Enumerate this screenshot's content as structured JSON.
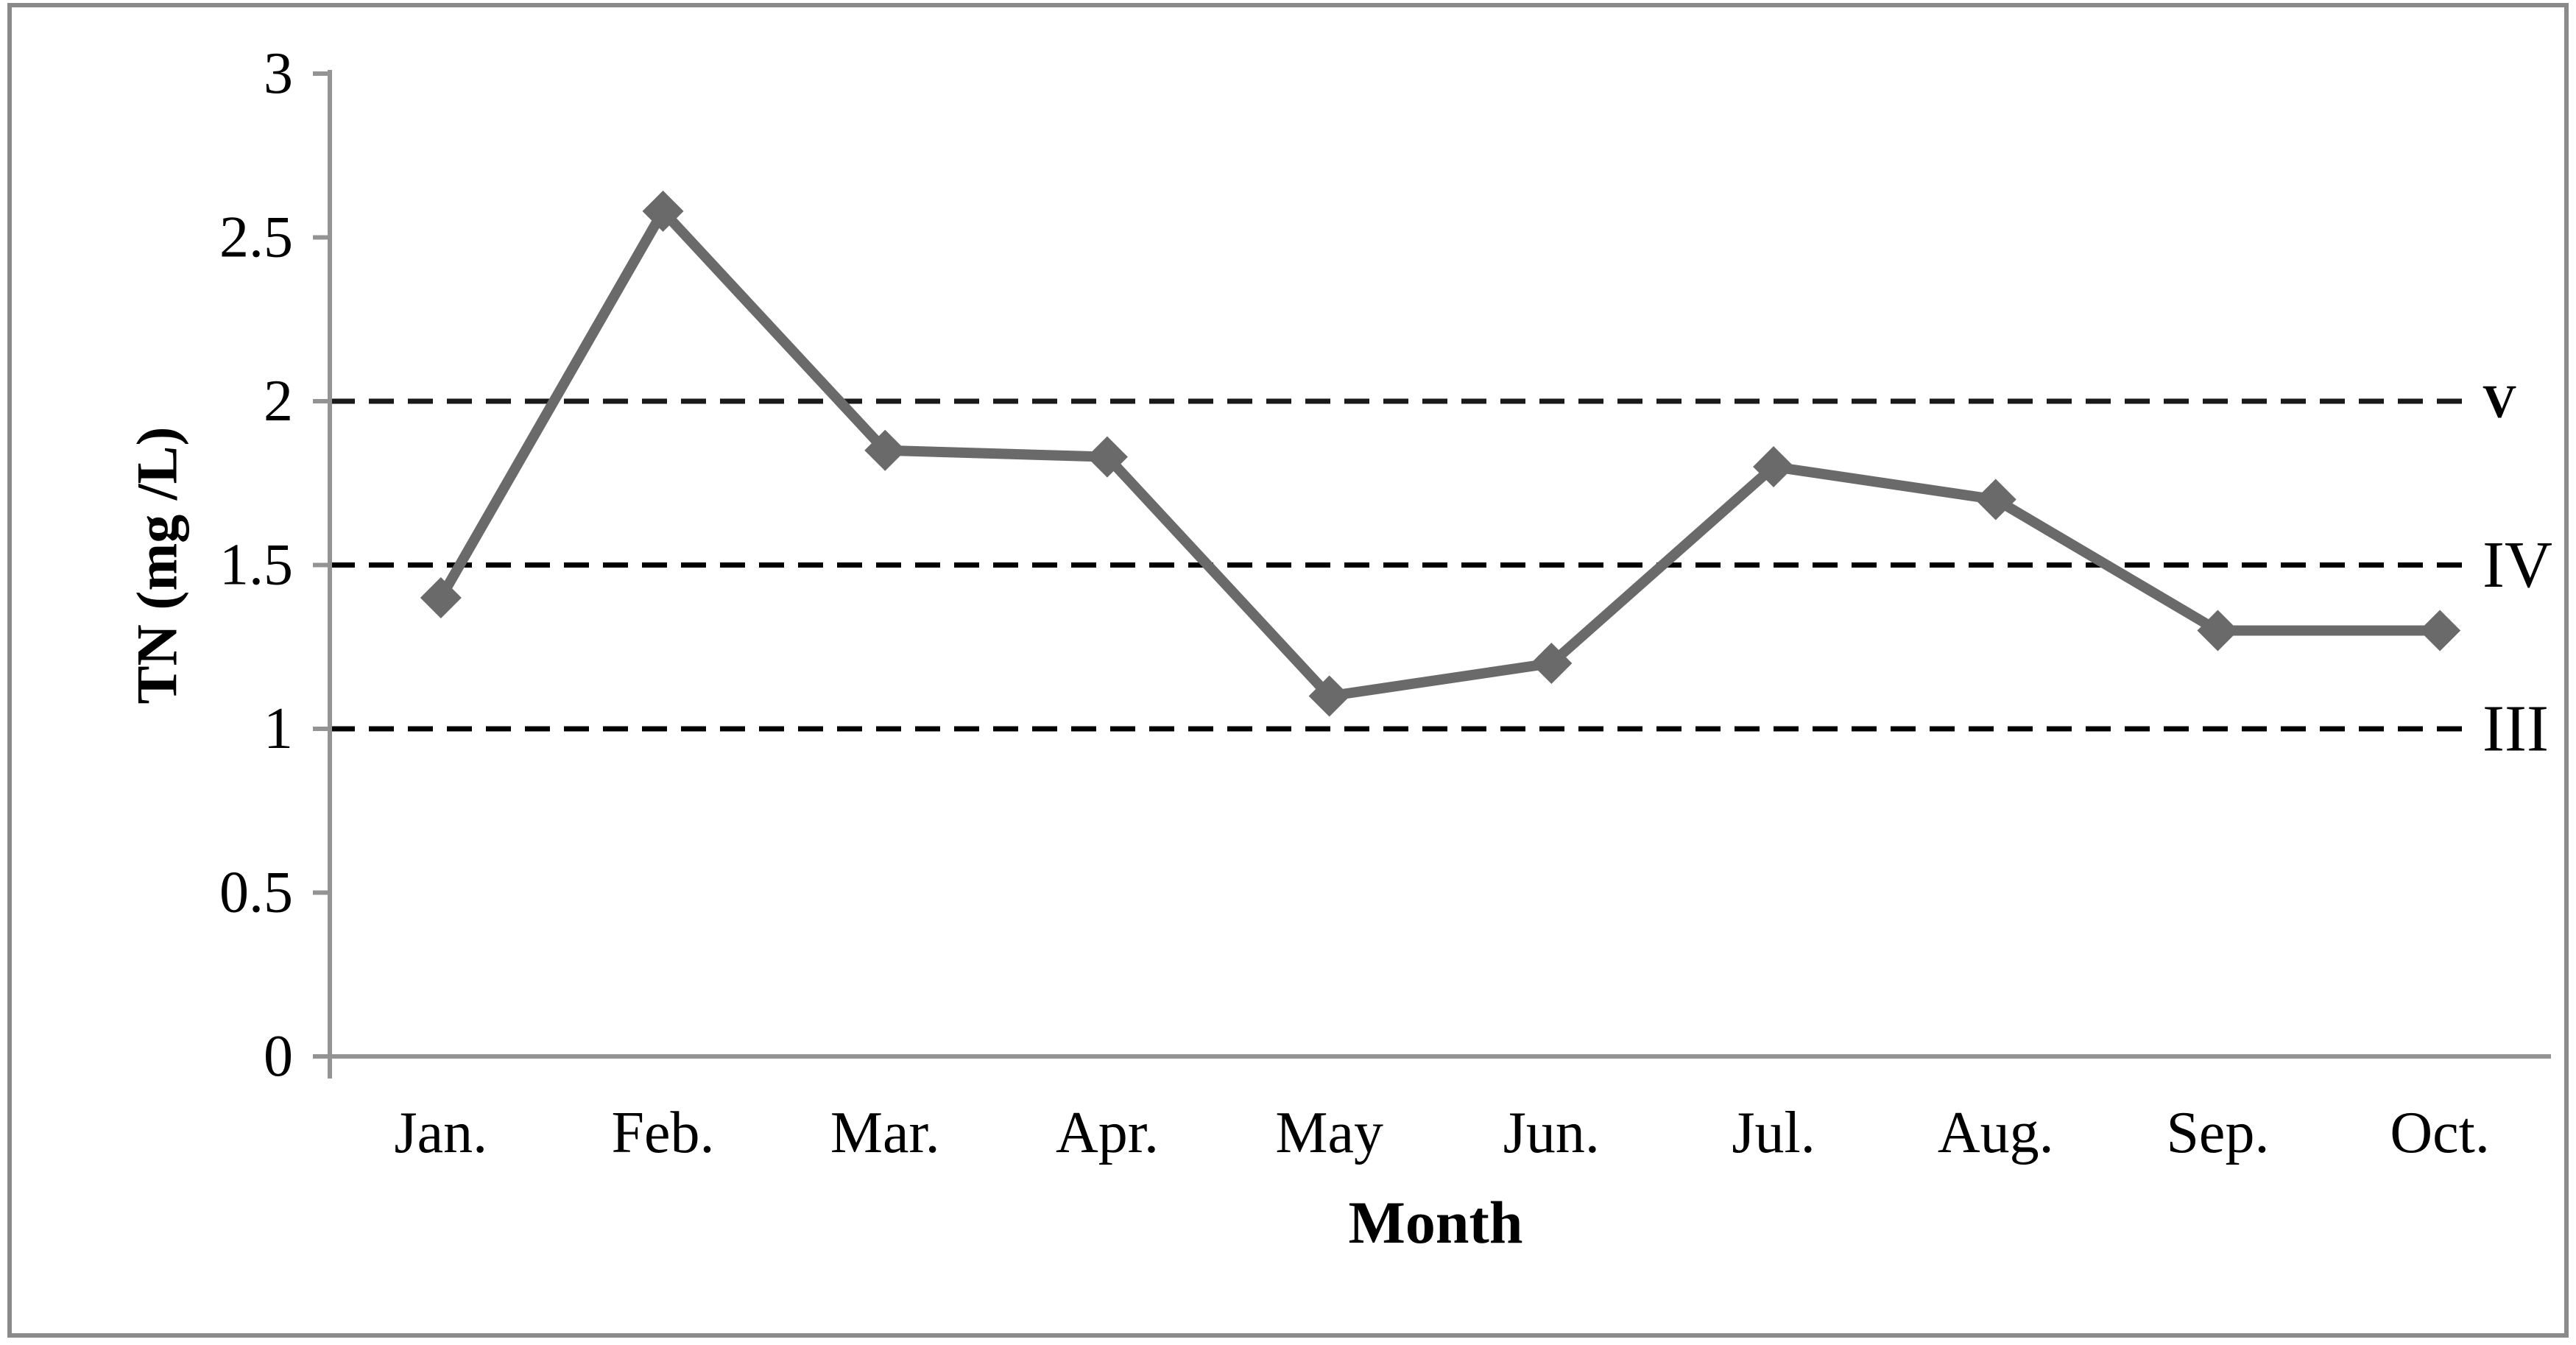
{
  "figure": {
    "background": "#ffffff",
    "border_color": "#8a8a8a"
  },
  "chart_data": {
    "type": "line",
    "title": "",
    "xlabel": "Month",
    "ylabel": "TN (mg /L)",
    "categories": [
      "Jan.",
      "Feb.",
      "Mar.",
      "Apr.",
      "May",
      "Jun.",
      "Jul.",
      "Aug.",
      "Sep.",
      "Oct."
    ],
    "series": [
      {
        "name": "TN",
        "values": [
          1.4,
          2.58,
          1.85,
          1.83,
          1.1,
          1.2,
          1.8,
          1.7,
          1.3,
          1.3
        ],
        "color": "#6a6a6a",
        "marker": "diamond"
      }
    ],
    "ylim": [
      0,
      3
    ],
    "yticks": {
      "values": [
        0,
        0.5,
        1,
        1.5,
        2,
        2.5,
        3
      ],
      "labels": [
        "0",
        "0.5",
        "1",
        "1.5",
        "2",
        "2.5",
        "3"
      ]
    },
    "reference_lines": [
      {
        "label": "III",
        "value": 1.0,
        "style": "dashed",
        "color": "#000000",
        "label_bold": false
      },
      {
        "label": "IV",
        "value": 1.5,
        "style": "dashed",
        "color": "#000000",
        "label_bold": false
      },
      {
        "label": "V",
        "value": 2.0,
        "style": "dashed",
        "color": "#1a1a1a",
        "label_bold": true
      }
    ],
    "axis_color": "#939393",
    "grid": false,
    "legend": "none"
  }
}
